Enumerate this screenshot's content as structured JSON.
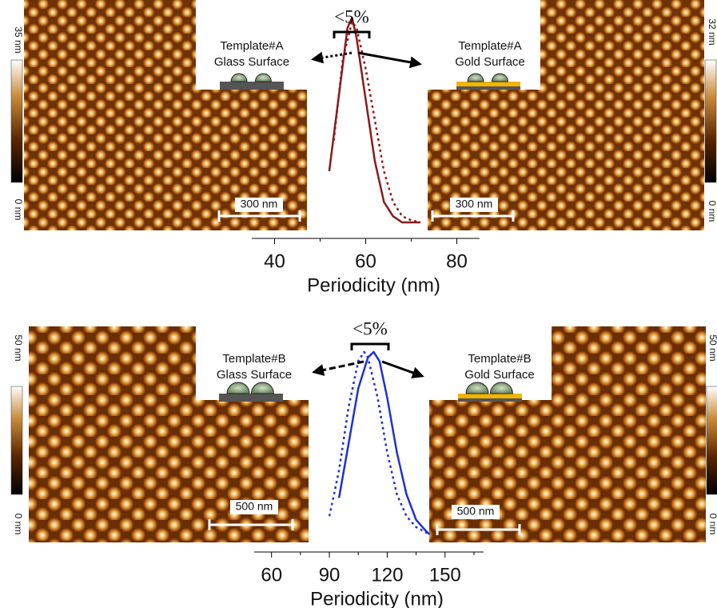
{
  "chart_data": [
    {
      "type": "line",
      "xlabel": "Periodicity (nm)",
      "spread_label": "<5%",
      "xlim": [
        35,
        85
      ],
      "ylim": [
        0,
        1
      ],
      "xticks": [
        40,
        60,
        80
      ],
      "xminor": [
        50,
        70
      ],
      "series": [
        {
          "color": "#8b1a1a",
          "dash": false,
          "x": [
            52,
            54,
            56,
            57,
            58,
            60,
            62,
            64,
            66,
            68,
            70,
            72
          ],
          "values": [
            0.25,
            0.6,
            0.95,
            1.0,
            0.9,
            0.6,
            0.3,
            0.1,
            0.03,
            0.0,
            0.0,
            0.0
          ]
        },
        {
          "color": "#8b1a1a",
          "dash": true,
          "x": [
            53,
            55,
            57,
            58,
            60,
            62,
            64,
            66,
            68,
            70,
            72
          ],
          "values": [
            0.4,
            0.8,
            0.98,
            0.95,
            0.75,
            0.5,
            0.25,
            0.1,
            0.03,
            0.01,
            0.0
          ]
        }
      ],
      "images": [
        {
          "title": "Template#A",
          "subtitle": "Glass Surface",
          "surface": "glass",
          "scale_bar": "300 nm",
          "colorbar_max": "35 nm",
          "colorbar_min": "0 nm"
        },
        {
          "title": "Template#A",
          "subtitle": "Gold Surface",
          "surface": "gold",
          "scale_bar": "300 nm",
          "colorbar_max": "32 nm",
          "colorbar_min": "0 nm"
        }
      ]
    },
    {
      "type": "line",
      "xlabel": "Periodicity (nm)",
      "spread_label": "<5%",
      "xlim": [
        51,
        170
      ],
      "ylim": [
        0,
        1
      ],
      "xticks": [
        60,
        90,
        120,
        150
      ],
      "xminor": [
        75,
        105,
        135,
        165
      ],
      "series": [
        {
          "color": "#1f2fd6",
          "dash": false,
          "x": [
            95,
            100,
            105,
            110,
            113,
            116,
            120,
            125,
            130,
            135,
            140,
            142
          ],
          "values": [
            0.2,
            0.5,
            0.8,
            0.97,
            1.0,
            0.95,
            0.75,
            0.45,
            0.22,
            0.08,
            0.02,
            0.0
          ]
        },
        {
          "color": "#1f2fd6",
          "dash": true,
          "x": [
            90,
            95,
            100,
            105,
            108,
            110,
            115,
            120,
            125,
            130,
            135,
            142
          ],
          "values": [
            0.1,
            0.35,
            0.7,
            0.95,
            1.0,
            0.97,
            0.75,
            0.45,
            0.22,
            0.1,
            0.04,
            0.0
          ]
        }
      ],
      "images": [
        {
          "title": "Template#B",
          "subtitle": "Glass Surface",
          "surface": "glass",
          "scale_bar": "500 nm",
          "colorbar_max": "50 nm",
          "colorbar_min": "0 nm"
        },
        {
          "title": "Template#B",
          "subtitle": "Gold Surface",
          "surface": "gold",
          "scale_bar": "500 nm",
          "colorbar_max": "50 nm",
          "colorbar_min": "0 nm"
        }
      ]
    }
  ]
}
